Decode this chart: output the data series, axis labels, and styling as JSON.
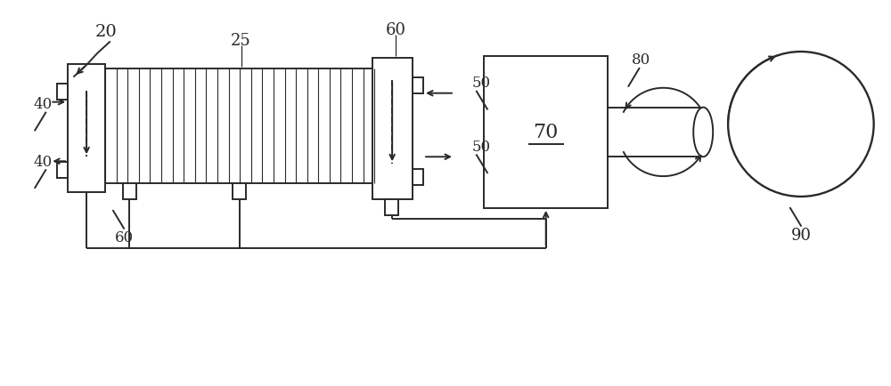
{
  "bg_color": "#ffffff",
  "line_color": "#2a2a2a",
  "fig_width": 10.0,
  "fig_height": 4.35,
  "dpi": 100
}
